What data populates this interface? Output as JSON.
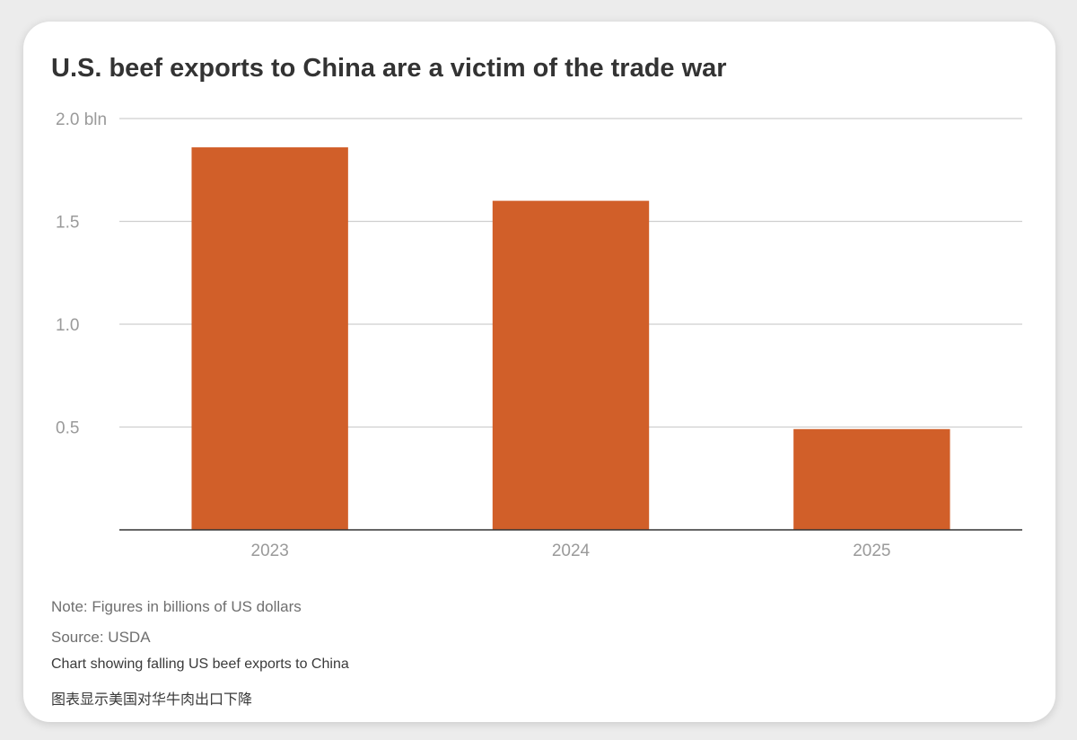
{
  "chart_data": {
    "type": "bar",
    "title": "U.S. beef exports to China are a victim of the trade war",
    "categories": [
      "2023",
      "2024",
      "2025"
    ],
    "values": [
      1.86,
      1.6,
      0.49
    ],
    "ylim": [
      0,
      2.0
    ],
    "yticks": [
      {
        "value": 0.5,
        "label": "0.5"
      },
      {
        "value": 1.0,
        "label": "1.0"
      },
      {
        "value": 1.5,
        "label": "1.5"
      },
      {
        "value": 2.0,
        "label": "2.0 bln"
      }
    ],
    "grid": true,
    "legend": "none",
    "bar_color": "#d15f29",
    "xlabel": "",
    "ylabel": ""
  },
  "footer": {
    "note": "Note: Figures in billions of US dollars",
    "source": "Source: USDA",
    "caption_en": "Chart showing falling US beef exports to China",
    "caption_zh": "图表显示美国对华牛肉出口下降"
  }
}
